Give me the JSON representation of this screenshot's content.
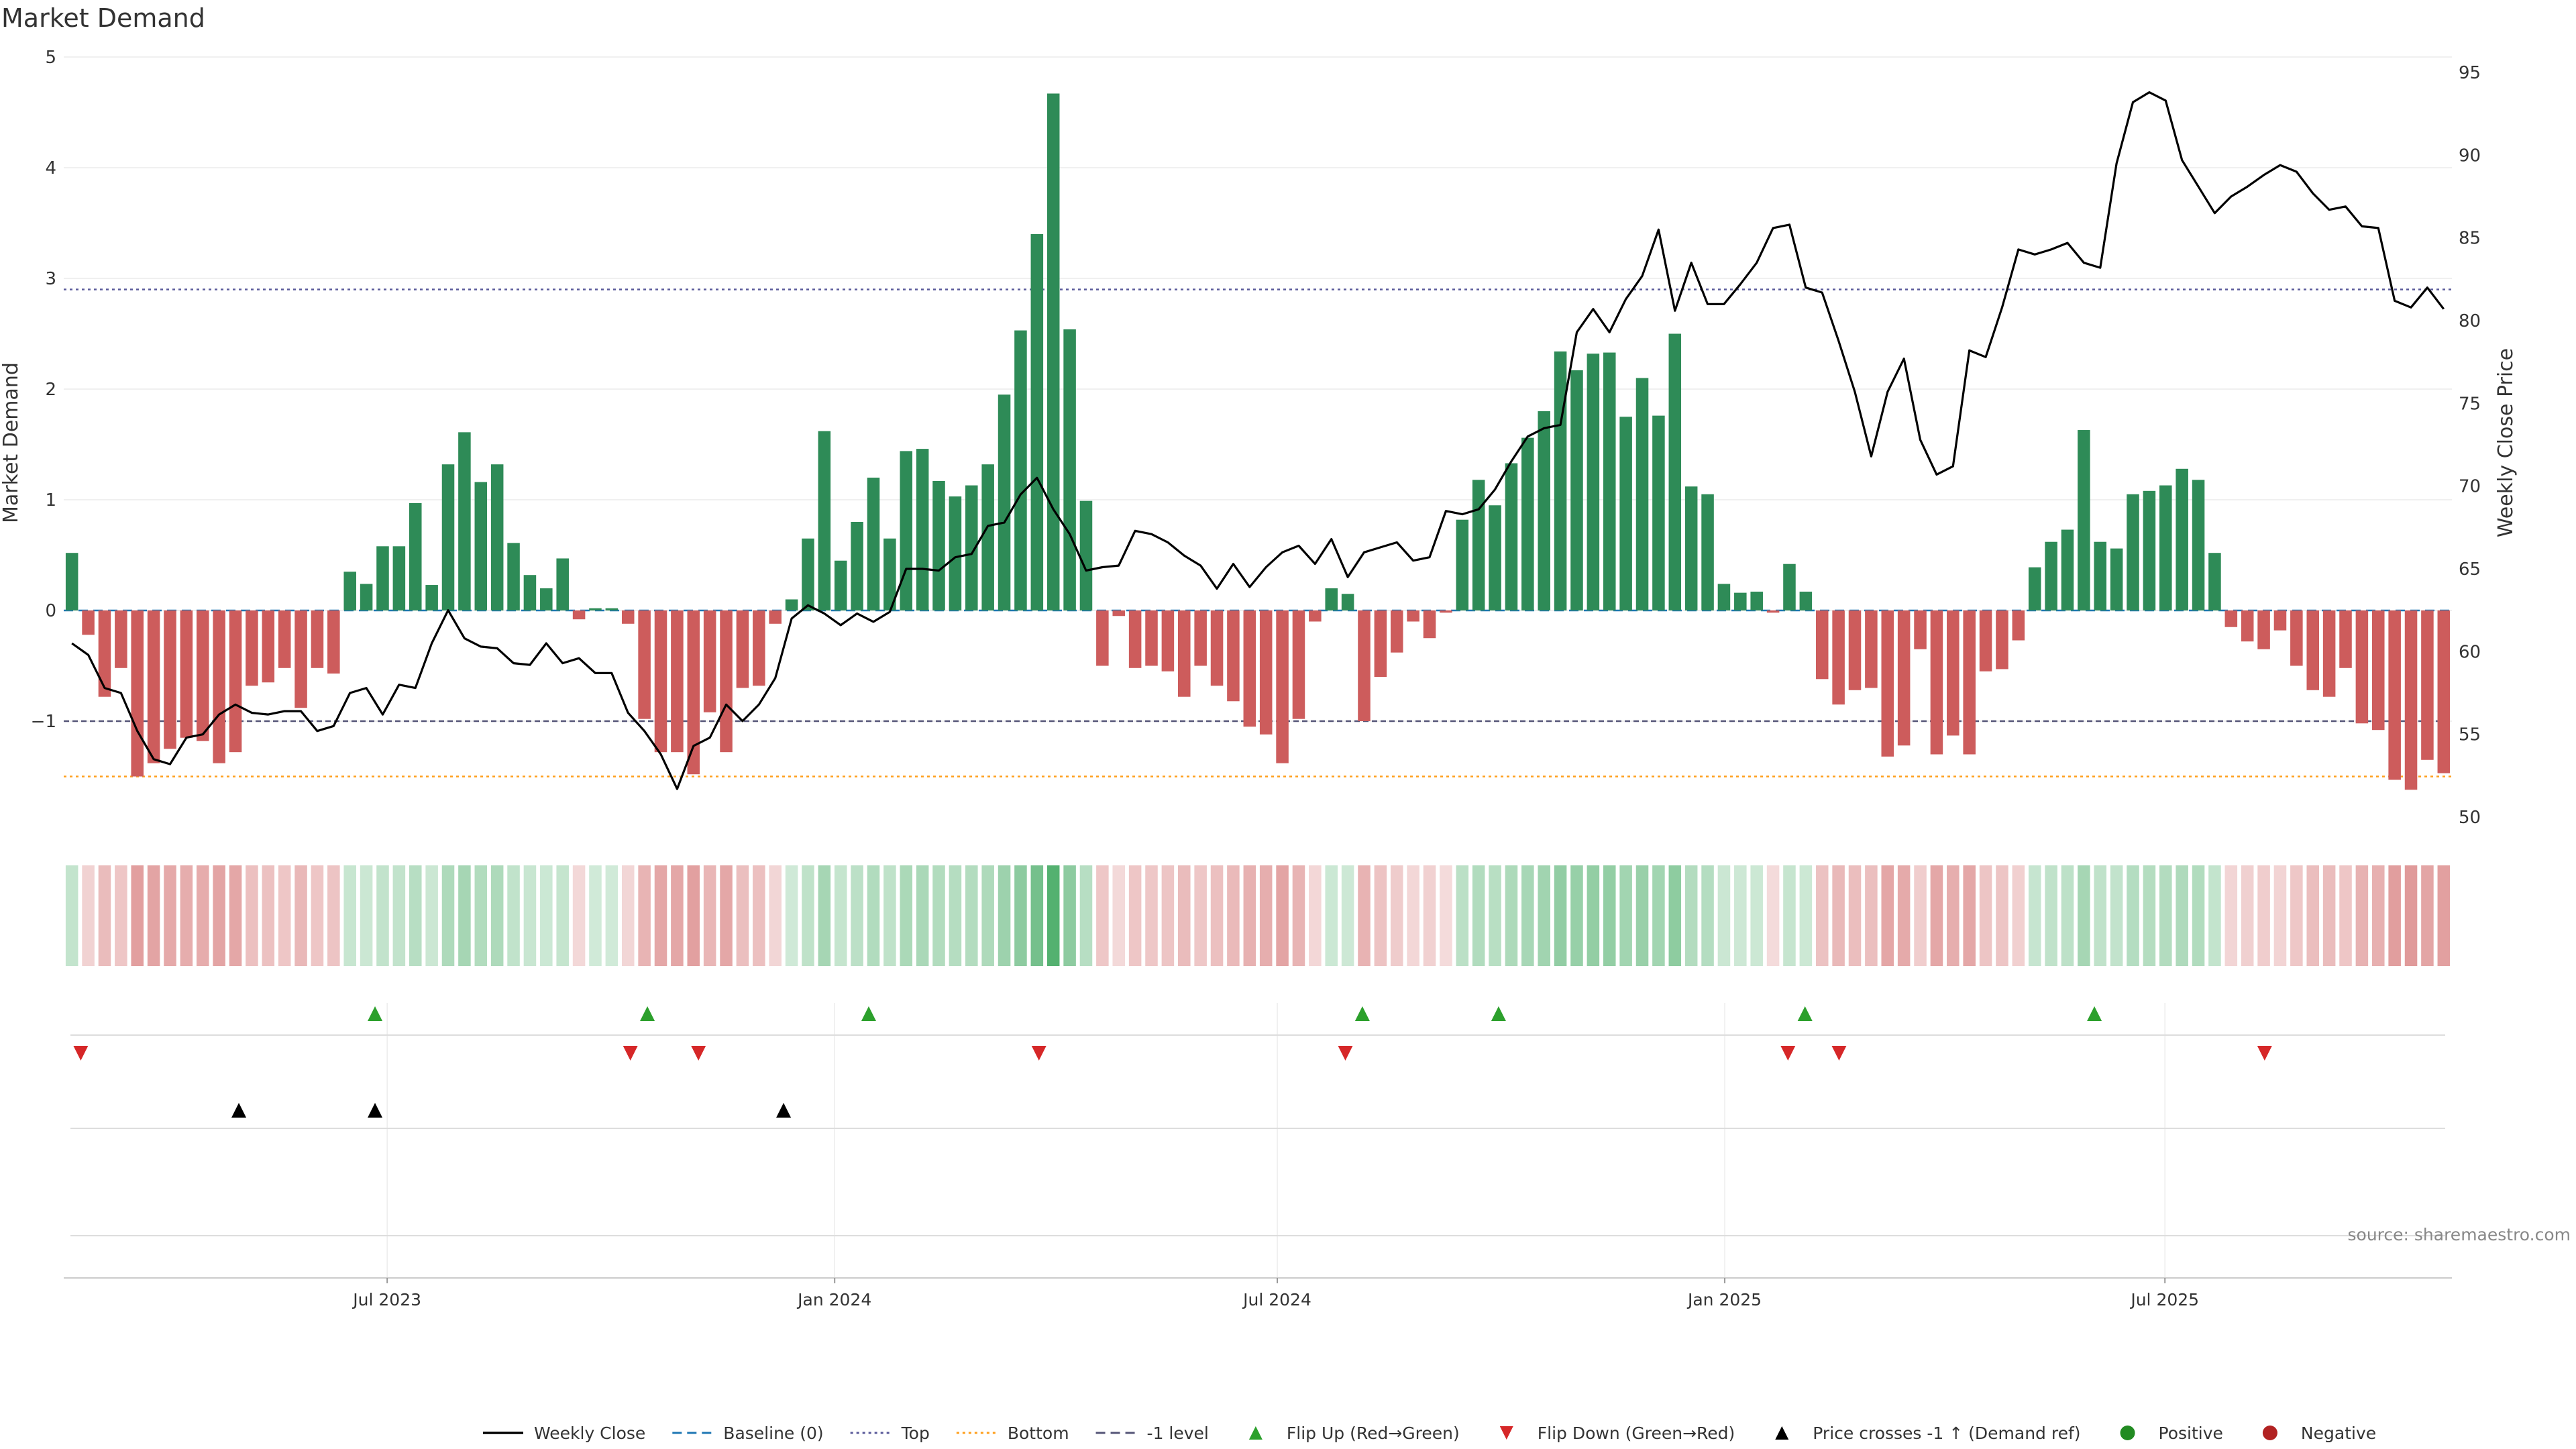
{
  "chart_data": {
    "type": "bar",
    "title": "Market Demand",
    "ylabel": "Market Demand",
    "y2label": "Weekly Close Price",
    "ylim": [
      -2,
      5
    ],
    "y2lim": [
      50,
      95
    ],
    "yticks": [
      5,
      4,
      3,
      2,
      1,
      0,
      -1
    ],
    "ytick_labels": [
      "5",
      "4",
      "3",
      "2",
      "1",
      "0",
      "−1"
    ],
    "y2ticks": [
      95,
      90,
      85,
      80,
      75,
      70,
      65,
      60,
      55,
      50
    ],
    "ref_levels": {
      "top": 2.9,
      "minus_one": -1,
      "bottom": -1.5,
      "baseline": 0
    },
    "x_start": "2023-02-18",
    "x_end": "2025-10-27",
    "date_ticks": [
      {
        "date": "2023-07-01",
        "label": "Jul 2023"
      },
      {
        "date": "2024-01-01",
        "label": "Jan 2024"
      },
      {
        "date": "2024-07-01",
        "label": "Jul 2024"
      },
      {
        "date": "2025-01-01",
        "label": "Jan 2025"
      },
      {
        "date": "2025-07-01",
        "label": "Jul 2025"
      }
    ],
    "series": [
      {
        "name": "Market Demand",
        "values": [
          0.52,
          -0.22,
          -0.78,
          -0.52,
          -1.5,
          -1.38,
          -1.25,
          -1.15,
          -1.18,
          -1.38,
          -1.28,
          -0.68,
          -0.65,
          -0.52,
          -0.88,
          -0.52,
          -0.57,
          0.35,
          0.24,
          0.58,
          0.58,
          0.97,
          0.23,
          1.32,
          1.61,
          1.16,
          1.32,
          0.61,
          0.32,
          0.2,
          0.47,
          -0.08,
          0.02,
          0.02,
          -0.12,
          -0.98,
          -1.28,
          -1.28,
          -1.48,
          -0.92,
          -1.28,
          -0.7,
          -0.68,
          -0.12,
          0.1,
          0.65,
          1.62,
          0.45,
          0.8,
          1.2,
          0.65,
          1.44,
          1.46,
          1.17,
          1.03,
          1.13,
          1.32,
          1.95,
          2.53,
          3.4,
          4.67,
          2.54,
          0.99,
          -0.5,
          -0.05,
          -0.52,
          -0.5,
          -0.55,
          -0.78,
          -0.5,
          -0.68,
          -0.82,
          -1.05,
          -1.12,
          -1.38,
          -0.98,
          -0.1,
          0.2,
          0.15,
          -1.0,
          -0.6,
          -0.38,
          -0.1,
          -0.25,
          -0.02,
          0.82,
          1.18,
          0.95,
          1.33,
          1.56,
          1.8,
          2.34,
          2.17,
          2.32,
          2.33,
          1.75,
          2.1,
          1.76,
          2.5,
          1.12,
          1.05,
          0.24,
          0.16,
          0.17,
          -0.02,
          0.42,
          0.17,
          -0.62,
          -0.85,
          -0.72,
          -0.7,
          -1.32,
          -1.22,
          -0.35,
          -1.3,
          -1.13,
          -1.3,
          -0.55,
          -0.53,
          -0.27,
          0.39,
          0.62,
          0.73,
          1.63,
          0.62,
          0.56,
          1.05,
          1.08,
          1.13,
          1.28,
          1.18,
          0.52,
          -0.15,
          -0.28,
          -0.35,
          -0.18,
          -0.5,
          -0.72,
          -0.78,
          -0.52,
          -1.02,
          -1.08,
          -1.53,
          -1.62,
          -1.35,
          -1.47
        ]
      },
      {
        "name": "Weekly Close",
        "values": [
          60.5,
          59.8,
          57.8,
          57.5,
          55.2,
          53.5,
          53.2,
          54.8,
          55.0,
          56.2,
          56.8,
          56.3,
          56.2,
          56.4,
          56.4,
          55.2,
          55.5,
          57.5,
          57.8,
          56.2,
          58.0,
          57.8,
          60.5,
          62.5,
          60.8,
          60.3,
          60.2,
          59.3,
          59.2,
          60.5,
          59.3,
          59.6,
          58.7,
          58.7,
          56.3,
          55.2,
          53.8,
          51.7,
          54.3,
          54.8,
          56.8,
          55.8,
          56.8,
          58.4,
          62.0,
          62.8,
          62.3,
          61.6,
          62.3,
          61.8,
          62.4,
          65.0,
          65.0,
          64.9,
          65.7,
          65.9,
          67.6,
          67.8,
          69.5,
          70.5,
          68.6,
          67.1,
          64.9,
          65.1,
          65.2,
          67.3,
          67.1,
          66.6,
          65.8,
          65.2,
          63.8,
          65.3,
          63.9,
          65.1,
          66.0,
          66.4,
          65.3,
          66.8,
          64.5,
          66.0,
          66.3,
          66.6,
          65.5,
          65.7,
          68.5,
          68.3,
          68.6,
          69.8,
          71.5,
          73.0,
          73.5,
          73.7,
          79.3,
          80.7,
          79.3,
          81.3,
          82.7,
          85.5,
          80.6,
          83.5,
          81.0,
          81.0,
          82.2,
          83.5,
          85.6,
          85.8,
          82.0,
          81.7,
          78.8,
          75.7,
          71.8,
          75.7,
          77.7,
          72.8,
          70.7,
          71.2,
          78.2,
          77.8,
          80.8,
          84.3,
          84.0,
          84.3,
          84.7,
          83.5,
          83.2,
          89.5,
          93.2,
          93.8,
          93.3,
          89.7,
          88.1,
          86.5,
          87.5,
          88.1,
          88.8,
          89.4,
          89.0,
          87.7,
          86.7,
          86.9,
          85.7,
          85.6,
          81.2,
          80.8,
          82.0,
          80.7
        ]
      }
    ],
    "flip_up_dates": [
      "2023-06-26",
      "2023-10-16",
      "2024-01-15",
      "2024-08-05",
      "2024-09-30",
      "2025-02-03",
      "2025-06-02"
    ],
    "flip_down_dates": [
      "2023-02-25",
      "2023-10-09",
      "2023-11-06",
      "2024-03-25",
      "2024-07-29",
      "2025-01-27",
      "2025-02-17",
      "2025-08-11"
    ],
    "price_cross_dates": [
      "2023-05-01",
      "2023-06-26",
      "2023-12-11"
    ],
    "legend": [
      {
        "label": "Weekly Close",
        "kind": "line",
        "color": "#000000"
      },
      {
        "label": "Baseline (0)",
        "kind": "dash",
        "color": "#1f77b4"
      },
      {
        "label": "Top",
        "kind": "dot",
        "color": "#5a5a9a"
      },
      {
        "label": "Bottom",
        "kind": "dot",
        "color": "#ff9f1c"
      },
      {
        "label": "-1 level",
        "kind": "dash",
        "color": "#555577"
      },
      {
        "label": "Flip Up (Red→Green)",
        "kind": "tri-up",
        "color": "#2ca02c"
      },
      {
        "label": "Flip Down (Green→Red)",
        "kind": "tri-down",
        "color": "#d62728"
      },
      {
        "label": "Price crosses -1 ↑ (Demand ref)",
        "kind": "tri-up",
        "color": "#000000"
      },
      {
        "label": "Positive",
        "kind": "dot-marker",
        "color": "#228b22"
      },
      {
        "label": "Negative",
        "kind": "dot-marker",
        "color": "#b22222"
      }
    ],
    "source_note": "source: sharemaestro.com"
  },
  "colors": {
    "positive_bar": "#2e8b57",
    "negative_bar": "#cd5c5c",
    "price_line": "#000000",
    "grid": "#ebebeb",
    "axis_text": "#333333"
  }
}
